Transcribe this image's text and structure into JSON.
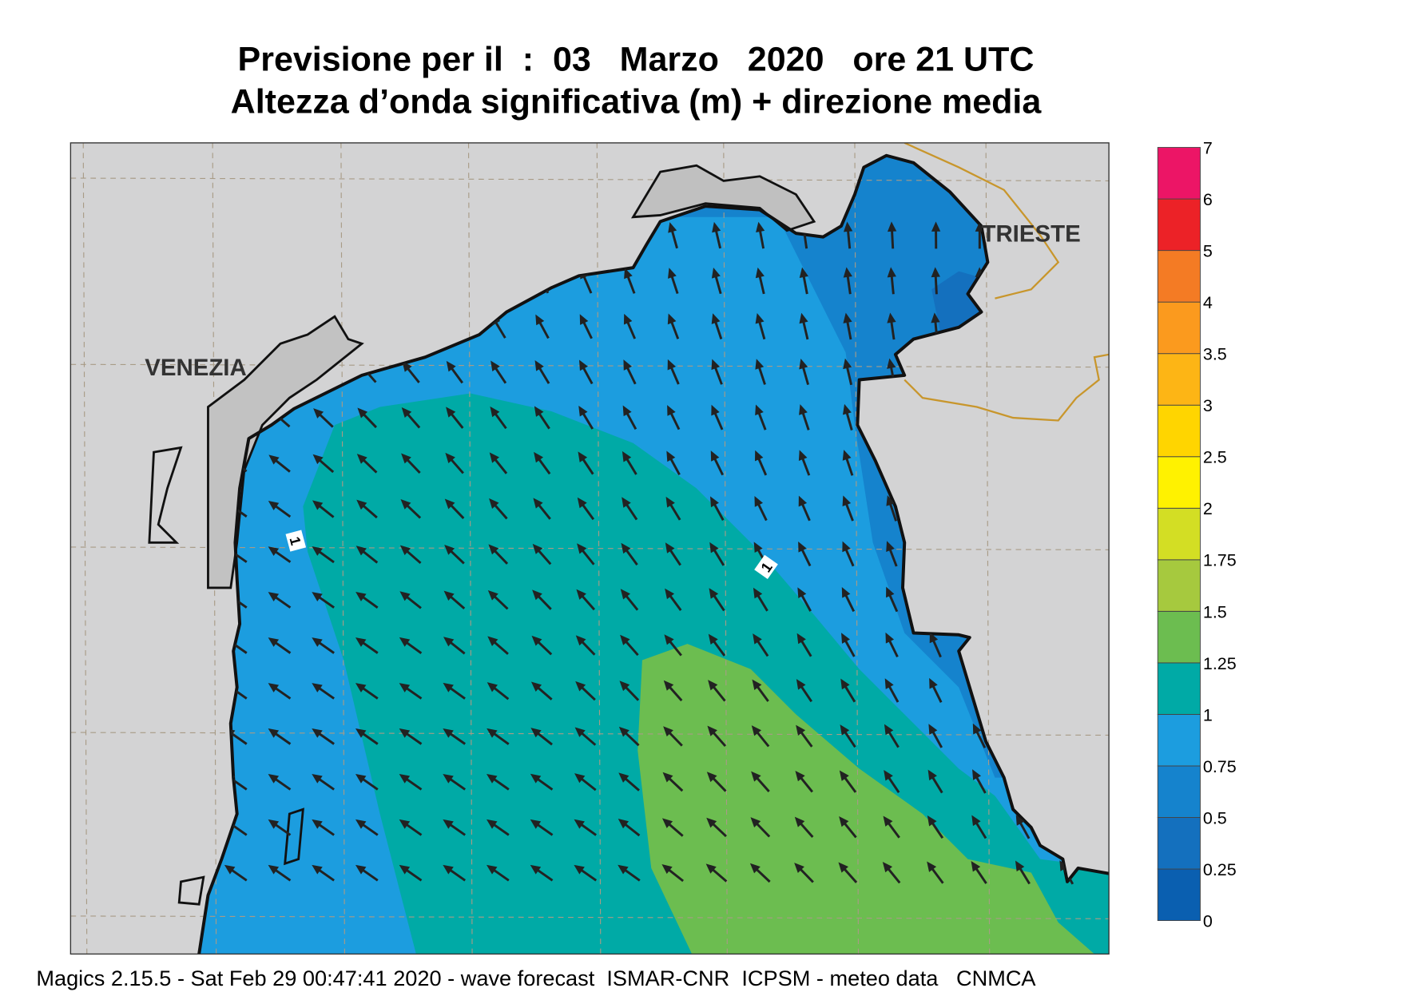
{
  "header": {
    "title": "Previsione per il  :  03   Marzo   2020   ore 21 UTC",
    "subtitle": "Altezza d’onda significativa (m) + direzione media"
  },
  "map": {
    "cities": [
      "VENEZIA",
      "TRIESTE"
    ],
    "contour_labels": [
      "1",
      "1"
    ]
  },
  "colorbar": {
    "labels": [
      "0",
      "0.25",
      "0.5",
      "0.75",
      "1",
      "1.25",
      "1.5",
      "1.75",
      "2",
      "2.5",
      "3",
      "3.5",
      "4",
      "5",
      "6",
      "7"
    ],
    "colors": [
      "#0a5fb0",
      "#1470be",
      "#1583cd",
      "#1c9ddf",
      "#00aaa6",
      "#6cbd50",
      "#a6c93e",
      "#d3de24",
      "#fff200",
      "#ffd500",
      "#fdb515",
      "#fb9a1e",
      "#f47b24",
      "#ec2227",
      "#ec1566"
    ]
  },
  "footer": "Magics 2.15.5 - Sat Feb 29 00:47:41 2020 - wave forecast  ISMAR-CNR  ICPSM - meteo data   CNMCA"
}
